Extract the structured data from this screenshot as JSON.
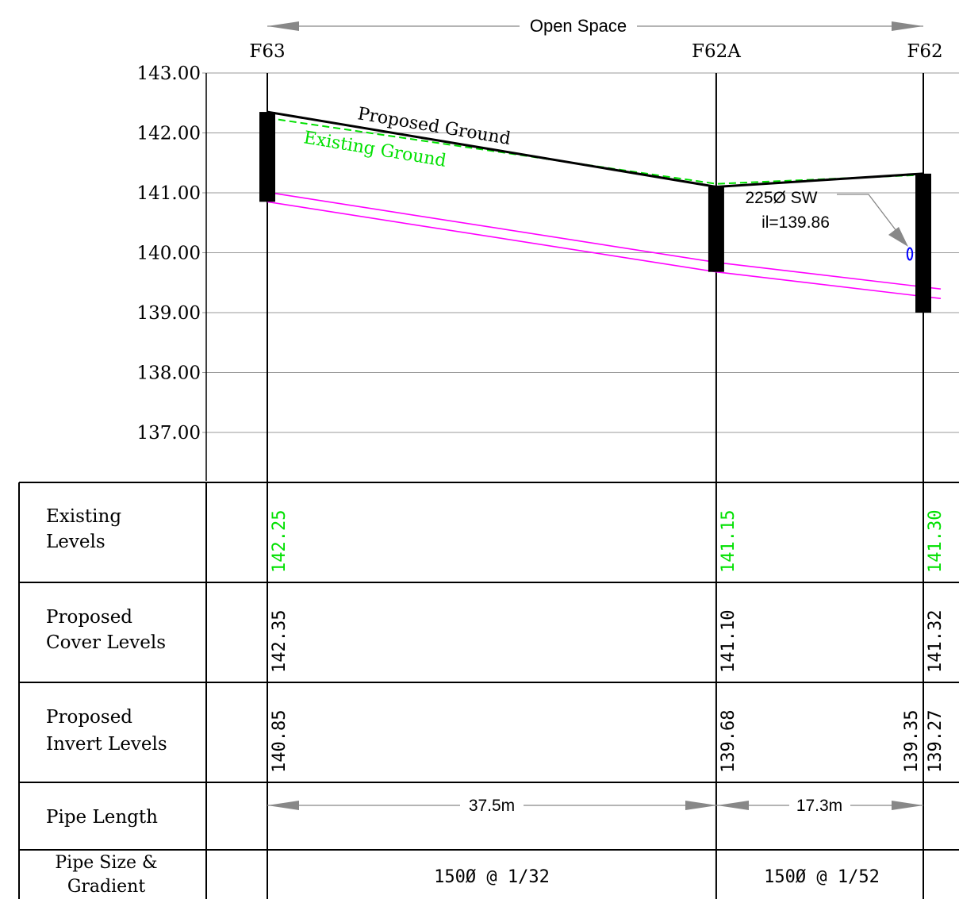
{
  "colors": {
    "existing": "#00e000",
    "proposed": "#000000",
    "pipe": "#ff00ff",
    "gridline": "#999999",
    "callout_ring": "#0000ff"
  },
  "header": {
    "extent_label": "Open Space"
  },
  "chart_data": {
    "type": "line",
    "y_axis": {
      "ticks": [
        "143.00",
        "142.00",
        "141.00",
        "140.00",
        "139.00",
        "138.00",
        "137.00"
      ],
      "range": [
        136.2,
        143.0
      ]
    },
    "chainage_m": [
      0,
      37.5,
      54.8
    ],
    "manholes": [
      {
        "name": "F63",
        "chainage": 0,
        "cover_level": 142.35,
        "base_level": 140.85
      },
      {
        "name": "F62A",
        "chainage": 37.5,
        "cover_level": 141.1,
        "base_level": 139.68
      },
      {
        "name": "F62",
        "chainage": 54.8,
        "cover_level": 141.32,
        "base_level": 139.0
      }
    ],
    "series": [
      {
        "name": "Proposed Ground",
        "x": [
          0,
          37.5,
          54.8
        ],
        "y": [
          142.35,
          141.1,
          141.32
        ]
      },
      {
        "name": "Existing Ground",
        "x": [
          0,
          37.5,
          54.8
        ],
        "y": [
          142.25,
          141.15,
          141.3
        ]
      },
      {
        "name": "pipe_invert",
        "x": [
          0,
          37.5,
          37.5,
          54.8,
          54.8
        ],
        "y": [
          140.85,
          139.68,
          139.68,
          139.35,
          139.27
        ]
      }
    ],
    "callout": {
      "text_line1": "225Ø SW",
      "text_line2": "il=139.86",
      "invert": 139.86
    }
  },
  "table": {
    "rows": [
      {
        "label_lines": [
          "Existing",
          "Levels"
        ],
        "color": "existing",
        "values": [
          "142.25",
          "141.15",
          "141.30"
        ]
      },
      {
        "label_lines": [
          "Proposed",
          "Cover Levels"
        ],
        "color": "proposed",
        "values": [
          "142.35",
          "141.10",
          "141.32"
        ]
      },
      {
        "label_lines": [
          "Proposed",
          "Invert Levels"
        ],
        "color": "proposed",
        "values": [
          "140.85",
          "139.68",
          "139.35",
          "139.27"
        ]
      },
      {
        "label_lines": [
          "Pipe Length"
        ],
        "spans": [
          "37.5m",
          "17.3m"
        ]
      },
      {
        "label_lines": [
          "Pipe Size &",
          "Gradient"
        ],
        "spans": [
          "150Ø @ 1/32",
          "150Ø @ 1/52"
        ]
      }
    ]
  }
}
